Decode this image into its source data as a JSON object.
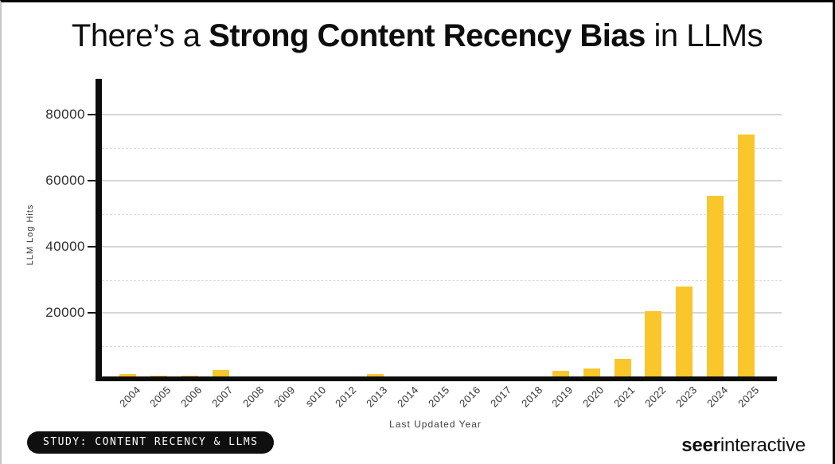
{
  "title": {
    "prefix": "There’s a ",
    "highlight": "Strong Content Recency Bias",
    "suffix": " in LLMs"
  },
  "chart_data": {
    "type": "bar",
    "title": "There's a Strong Content Recency Bias in LLMs",
    "categories": [
      "2004",
      "2005",
      "2006",
      "2007",
      "2008",
      "2009",
      "s010",
      "2012",
      "2013",
      "2014",
      "2015",
      "2016",
      "2017",
      "2018",
      "2019",
      "2020",
      "2021",
      "2022",
      "2023",
      "2024",
      "2025"
    ],
    "values": [
      1500,
      1000,
      1000,
      2700,
      0,
      0,
      0,
      0,
      1400,
      0,
      0,
      0,
      0,
      0,
      2400,
      3200,
      6000,
      20500,
      28000,
      55500,
      74000
    ],
    "xlabel": "Last Updated Year",
    "ylabel": "LLM Log Hits",
    "ylim": [
      0,
      90000
    ],
    "yticks": [
      20000,
      40000,
      60000,
      80000
    ],
    "minor_gridlines": [
      10000,
      30000,
      50000,
      70000
    ],
    "grid": true,
    "legend": false,
    "bar_color": "#F9C62B"
  },
  "footer": {
    "badge_label": "STUDY: CONTENT RECENCY & LLMS",
    "logo": {
      "bold": "seer",
      "regular": "interactive"
    }
  },
  "colors": {
    "bar": "#F9C62B",
    "axis": "#0d0d0d",
    "grid_major": "#d6d6d6",
    "grid_minor": "#dcdcdc",
    "tick_text": "#2e2e2e",
    "badge_bg": "#0f0f0f",
    "badge_text": "#ffffff"
  }
}
